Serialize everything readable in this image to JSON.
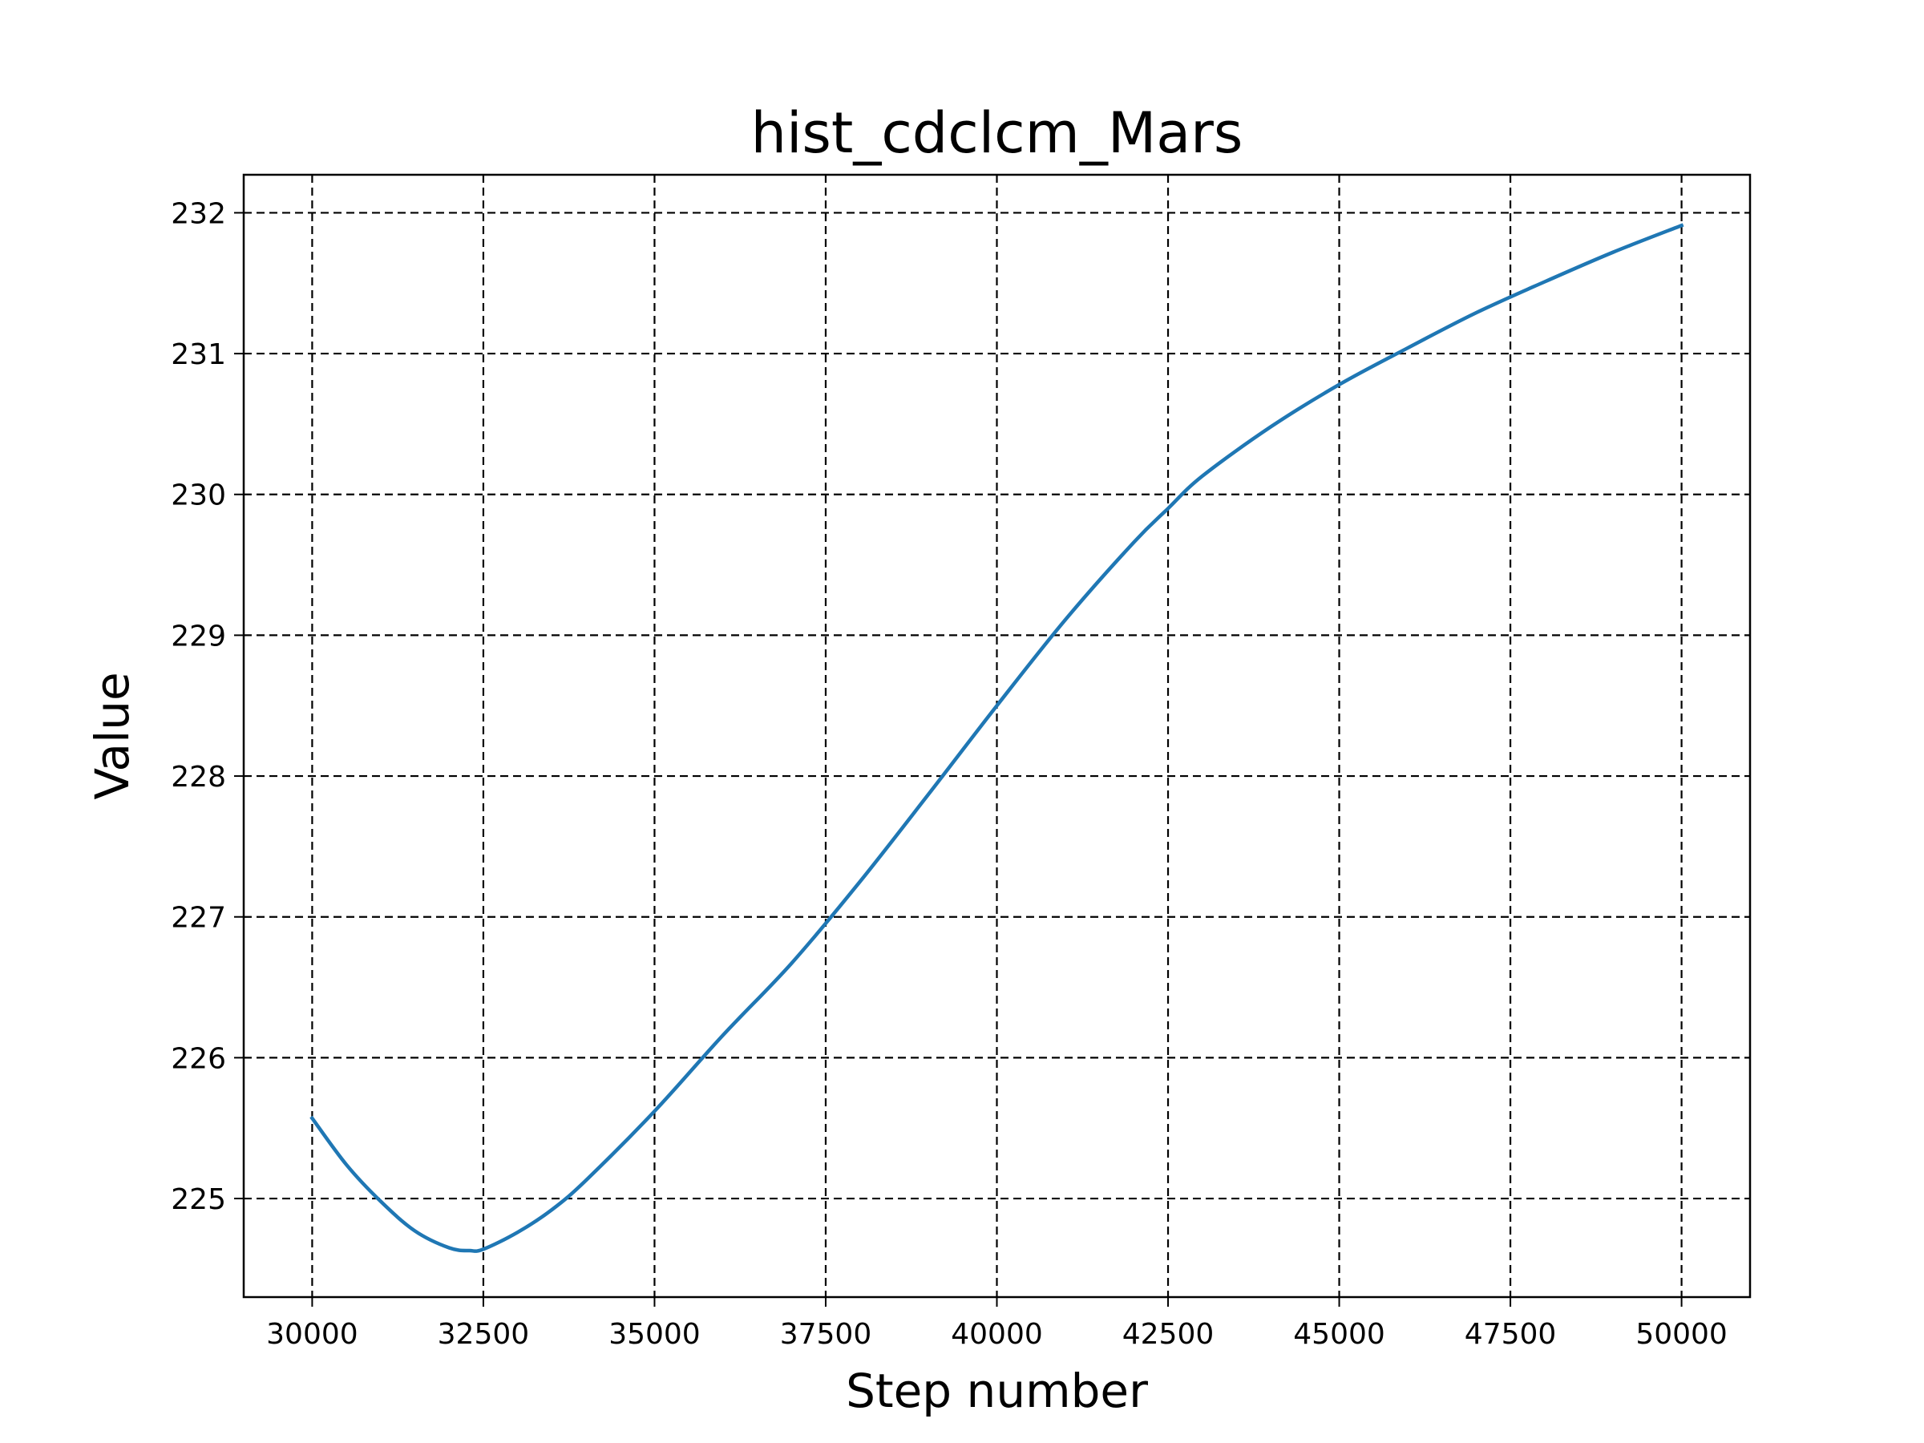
{
  "chart_data": {
    "type": "line",
    "title": "hist_cdclcm_Mars",
    "xlabel": "Step number",
    "ylabel": "Value",
    "xlim": [
      29000,
      51000
    ],
    "ylim": [
      224.3,
      232.27
    ],
    "xticks": [
      30000,
      32500,
      35000,
      37500,
      40000,
      42500,
      45000,
      47500,
      50000
    ],
    "yticks": [
      225,
      226,
      227,
      228,
      229,
      230,
      231,
      232
    ],
    "xtick_labels": [
      "30000",
      "32500",
      "35000",
      "37500",
      "40000",
      "42500",
      "45000",
      "47500",
      "50000"
    ],
    "ytick_labels": [
      "225",
      "226",
      "227",
      "228",
      "229",
      "230",
      "231",
      "232"
    ],
    "grid": true,
    "series": [
      {
        "color": "#1f77b4",
        "x": [
          30000,
          30500,
          31000,
          31500,
          32000,
          32300,
          32500,
          33000,
          33500,
          34000,
          35000,
          36000,
          37000,
          38000,
          39000,
          40000,
          41000,
          42000,
          42500,
          43000,
          44000,
          45000,
          46000,
          47000,
          48000,
          49000,
          50000
        ],
        "y": [
          225.57,
          225.24,
          224.98,
          224.77,
          224.65,
          224.63,
          224.64,
          224.76,
          224.92,
          225.13,
          225.62,
          226.16,
          226.67,
          227.25,
          227.87,
          228.5,
          229.11,
          229.66,
          229.9,
          230.13,
          230.48,
          230.78,
          231.04,
          231.29,
          231.51,
          231.72,
          231.91
        ]
      }
    ]
  }
}
